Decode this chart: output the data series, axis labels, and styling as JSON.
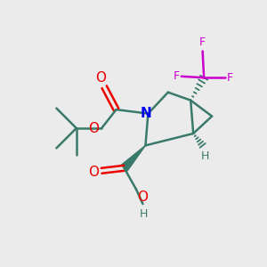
{
  "bg_color": "#ebebeb",
  "bond_color": "#3a7a6a",
  "n_color": "#0000ee",
  "o_color": "#ee0000",
  "f_color": "#cc00cc",
  "h_color": "#3a7a6a",
  "line_width": 1.8,
  "fig_size": [
    3.0,
    3.0
  ],
  "dpi": 100,
  "xlim": [
    0,
    10
  ],
  "ylim": [
    0,
    10
  ]
}
